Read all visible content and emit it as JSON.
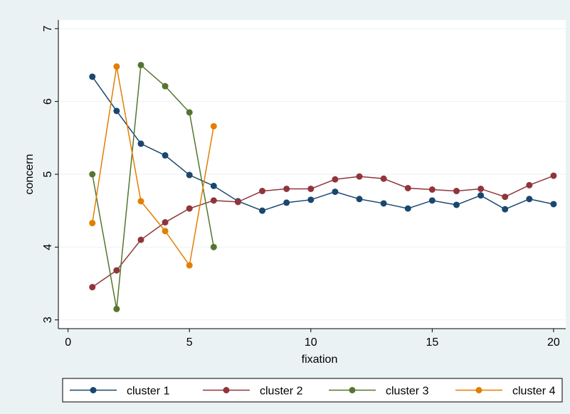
{
  "chart_data": {
    "type": "line",
    "x_label": "fixation",
    "y_label": "concern",
    "x": [
      1,
      2,
      3,
      4,
      5,
      6,
      7,
      8,
      9,
      10,
      11,
      12,
      13,
      14,
      15,
      16,
      17,
      18,
      19,
      20
    ],
    "series": [
      {
        "name": "cluster 1",
        "color": "#1a476f",
        "values": [
          6.34,
          5.87,
          5.42,
          5.26,
          4.99,
          4.84,
          4.63,
          4.5,
          4.61,
          4.65,
          4.76,
          4.66,
          4.6,
          4.53,
          4.64,
          4.58,
          4.71,
          4.52,
          4.66,
          4.59
        ]
      },
      {
        "name": "cluster 2",
        "color": "#90353b",
        "values": [
          3.45,
          3.68,
          4.1,
          4.34,
          4.53,
          4.64,
          4.62,
          4.77,
          4.8,
          4.8,
          4.93,
          4.97,
          4.94,
          4.81,
          4.79,
          4.77,
          4.8,
          4.69,
          4.85,
          4.98
        ]
      },
      {
        "name": "cluster 3",
        "color": "#55752f",
        "values": [
          5.0,
          3.15,
          6.5,
          6.21,
          5.85,
          4.0,
          null,
          null,
          null,
          null,
          null,
          null,
          null,
          null,
          null,
          null,
          null,
          null,
          null,
          null
        ]
      },
      {
        "name": "cluster 4",
        "color": "#e37e00",
        "values": [
          4.33,
          6.48,
          4.63,
          4.22,
          3.75,
          5.66,
          null,
          null,
          null,
          null,
          null,
          null,
          null,
          null,
          null,
          null,
          null,
          null,
          null,
          null
        ]
      }
    ],
    "xlim": [
      -0.4,
      20.5
    ],
    "xticks": [
      0,
      5,
      10,
      15,
      20
    ],
    "ylim": [
      2.88,
      7.12
    ],
    "yticks": [
      3,
      4,
      5,
      6,
      7
    ],
    "grid": true,
    "legend": "bottom"
  }
}
